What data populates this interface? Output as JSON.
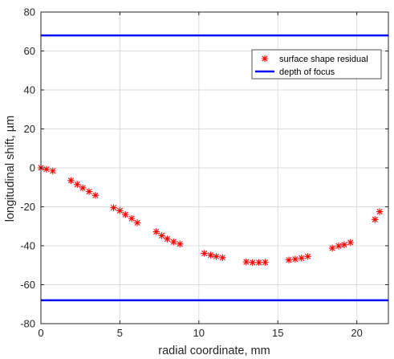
{
  "chart_data": {
    "type": "scatter",
    "title": "",
    "xlabel": "radial coordinate, mm",
    "ylabel": "longitudinal shift, µm",
    "xlim": [
      0,
      22
    ],
    "ylim": [
      -80,
      80
    ],
    "xticks": [
      0,
      5,
      10,
      15,
      20
    ],
    "yticks": [
      -80,
      -60,
      -40,
      -20,
      0,
      20,
      40,
      60,
      80
    ],
    "grid": true,
    "legend_position": "top-right",
    "series": [
      {
        "name": "surface shape residual",
        "kind": "scatter",
        "marker": "*",
        "color": "#ff0000",
        "x": [
          0,
          0.35,
          0.75,
          1.9,
          2.3,
          2.65,
          3.05,
          3.45,
          4.6,
          5.0,
          5.35,
          5.75,
          6.1,
          7.3,
          7.65,
          8.0,
          8.4,
          8.8,
          10.35,
          10.75,
          11.1,
          11.5,
          13.0,
          13.4,
          13.8,
          14.2,
          15.7,
          16.1,
          16.5,
          16.9,
          18.45,
          18.85,
          19.2,
          19.6,
          21.15,
          21.45
        ],
        "y": [
          0,
          -0.7,
          -1.6,
          -6.5,
          -8.5,
          -10.3,
          -12.2,
          -14.1,
          -20.5,
          -22,
          -24,
          -26,
          -28.2,
          -32.8,
          -34.8,
          -36.5,
          -38,
          -39.1,
          -43.9,
          -44.8,
          -45.5,
          -46.1,
          -48.3,
          -48.6,
          -48.6,
          -48.5,
          -47.3,
          -46.9,
          -46.3,
          -45.5,
          -41.2,
          -40.1,
          -39.5,
          -38.3,
          -26.5,
          -22.5
        ]
      },
      {
        "name": "depth of focus",
        "kind": "hline",
        "color": "#0000ff",
        "values": [
          68,
          -68
        ]
      }
    ]
  }
}
